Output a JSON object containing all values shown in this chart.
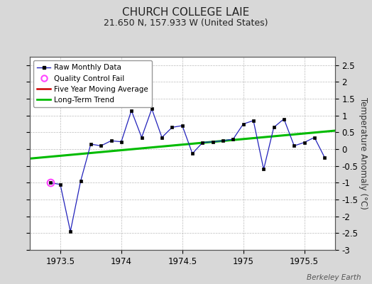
{
  "title": "CHURCH COLLEGE LAIE",
  "subtitle": "21.650 N, 157.933 W (United States)",
  "ylabel": "Temperature Anomaly (°C)",
  "watermark": "Berkeley Earth",
  "xlim": [
    1973.25,
    1975.75
  ],
  "ylim": [
    -3.0,
    2.75
  ],
  "yticks": [
    -3,
    -2.5,
    -2,
    -1.5,
    -1,
    -0.5,
    0,
    0.5,
    1,
    1.5,
    2,
    2.5
  ],
  "xticks": [
    1973.5,
    1974.0,
    1974.5,
    1975.0,
    1975.5
  ],
  "xtick_labels": [
    "1973.5",
    "1974",
    "1974.5",
    "1975",
    "1975.5"
  ],
  "background_color": "#d8d8d8",
  "plot_bg_color": "#ffffff",
  "raw_x": [
    1973.417,
    1973.5,
    1973.583,
    1973.667,
    1973.75,
    1973.833,
    1973.917,
    1974.0,
    1974.083,
    1974.167,
    1974.25,
    1974.333,
    1974.417,
    1974.5,
    1974.583,
    1974.667,
    1974.75,
    1974.833,
    1974.917,
    1975.0,
    1975.083,
    1975.167,
    1975.25,
    1975.333,
    1975.417,
    1975.5,
    1975.583,
    1975.667
  ],
  "raw_y": [
    -1.0,
    -1.05,
    -2.45,
    -0.95,
    0.15,
    0.1,
    0.25,
    0.22,
    1.15,
    0.35,
    1.2,
    0.35,
    0.65,
    0.7,
    -0.13,
    0.2,
    0.22,
    0.25,
    0.3,
    0.75,
    0.85,
    -0.6,
    0.65,
    0.9,
    0.1,
    0.2,
    0.35,
    -0.25
  ],
  "qc_fail_x": [
    1973.417
  ],
  "qc_fail_y": [
    -1.0
  ],
  "trend_x": [
    1973.25,
    1975.75
  ],
  "trend_y": [
    -0.28,
    0.55
  ],
  "raw_line_color": "#2222bb",
  "raw_marker_color": "#000000",
  "qc_color": "#ff44ff",
  "trend_color": "#00bb00",
  "mavg_color": "#cc0000",
  "title_fontsize": 11,
  "subtitle_fontsize": 9,
  "tick_fontsize": 8.5,
  "ylabel_fontsize": 8.5
}
